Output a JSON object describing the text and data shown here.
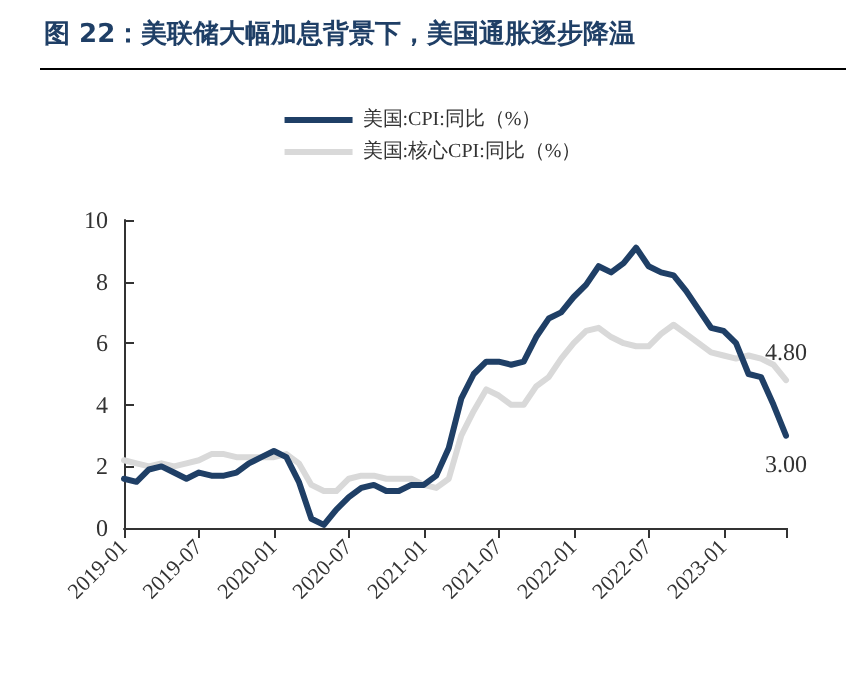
{
  "chart_data": {
    "type": "line",
    "title": "图 22：美联储大幅加息背景下，美国通胀逐步降温",
    "categories": [
      "2019-01",
      null,
      null,
      null,
      null,
      null,
      "2019-07",
      null,
      null,
      null,
      null,
      null,
      "2020-01",
      null,
      null,
      null,
      null,
      null,
      "2020-07",
      null,
      null,
      null,
      null,
      null,
      "2021-01",
      null,
      null,
      null,
      null,
      null,
      "2021-07",
      null,
      null,
      null,
      null,
      null,
      "2022-01",
      null,
      null,
      null,
      null,
      null,
      "2022-07",
      null,
      null,
      null,
      null,
      null,
      "2023-01",
      null,
      null,
      null,
      null,
      null
    ],
    "series": [
      {
        "name": "美国:CPI:同比（%）",
        "color": "#1f3f66",
        "values": [
          1.6,
          1.5,
          1.9,
          2.0,
          1.8,
          1.6,
          1.8,
          1.7,
          1.7,
          1.8,
          2.1,
          2.3,
          2.5,
          2.3,
          1.5,
          0.3,
          0.1,
          0.6,
          1.0,
          1.3,
          1.4,
          1.2,
          1.2,
          1.4,
          1.4,
          1.7,
          2.6,
          4.2,
          5.0,
          5.4,
          5.4,
          5.3,
          5.4,
          6.2,
          6.8,
          7.0,
          7.5,
          7.9,
          8.5,
          8.3,
          8.6,
          9.1,
          8.5,
          8.3,
          8.2,
          7.7,
          7.1,
          6.5,
          6.4,
          6.0,
          5.0,
          4.9,
          4.0,
          3.0
        ],
        "value_labels": [
          null,
          null,
          null,
          null,
          null,
          null,
          null,
          null,
          null,
          null,
          null,
          null,
          null,
          null,
          null,
          null,
          null,
          null,
          null,
          null,
          null,
          null,
          null,
          null,
          null,
          null,
          null,
          null,
          null,
          null,
          null,
          null,
          null,
          null,
          null,
          null,
          null,
          null,
          null,
          null,
          null,
          null,
          null,
          null,
          null,
          null,
          null,
          null,
          null,
          null,
          null,
          null,
          null,
          "3.00"
        ]
      },
      {
        "name": "美国:核心CPI:同比（%）",
        "color": "#d9d9d9",
        "values": [
          2.2,
          2.1,
          2.0,
          2.1,
          2.0,
          2.1,
          2.2,
          2.4,
          2.4,
          2.3,
          2.3,
          2.3,
          2.3,
          2.4,
          2.1,
          1.4,
          1.2,
          1.2,
          1.6,
          1.7,
          1.7,
          1.6,
          1.6,
          1.6,
          1.4,
          1.3,
          1.6,
          3.0,
          3.8,
          4.5,
          4.3,
          4.0,
          4.0,
          4.6,
          4.9,
          5.5,
          6.0,
          6.4,
          6.5,
          6.2,
          6.0,
          5.9,
          5.9,
          6.3,
          6.6,
          6.3,
          6.0,
          5.7,
          5.6,
          5.5,
          5.6,
          5.5,
          5.3,
          4.8
        ],
        "value_labels": [
          null,
          null,
          null,
          null,
          null,
          null,
          null,
          null,
          null,
          null,
          null,
          null,
          null,
          null,
          null,
          null,
          null,
          null,
          null,
          null,
          null,
          null,
          null,
          null,
          null,
          null,
          null,
          null,
          null,
          null,
          null,
          null,
          null,
          null,
          null,
          null,
          null,
          null,
          null,
          null,
          null,
          null,
          null,
          null,
          null,
          null,
          null,
          null,
          null,
          null,
          null,
          null,
          null,
          "4.80"
        ]
      }
    ],
    "ylim": [
      0,
      10
    ],
    "yticks": [
      0,
      2,
      4,
      6,
      8,
      10
    ],
    "grid": false,
    "legend": "top",
    "marker": "none",
    "line_style": "solid"
  }
}
